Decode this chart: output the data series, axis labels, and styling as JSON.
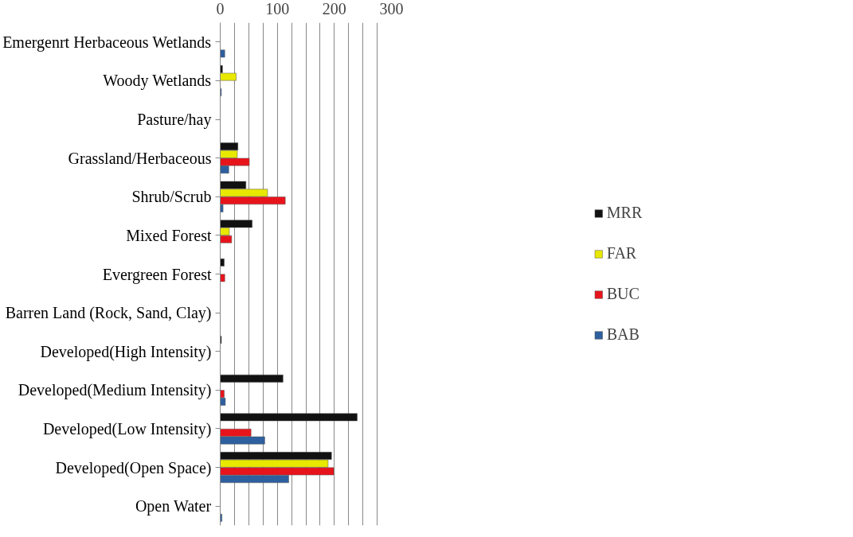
{
  "chart_data": {
    "type": "bar",
    "orientation": "horizontal",
    "categories": [
      "Emergenrt Herbaceous Wetlands",
      "Woody Wetlands",
      "Pasture/hay",
      "Grassland/Herbaceous",
      "Shrub/Scrub",
      "Mixed Forest",
      "Evergreen Forest",
      "Barren Land (Rock, Sand, Clay)",
      "Developed(High Intensity)",
      "Developed(Medium Intensity)",
      "Developed(Low Intensity)",
      "Developed(Open Space)",
      "Open Water"
    ],
    "series": [
      {
        "name": "MRR",
        "color": "#111111",
        "values": [
          null,
          4,
          null,
          31,
          45,
          56,
          7,
          null,
          2,
          110,
          240,
          195,
          null
        ]
      },
      {
        "name": "FAR",
        "color": "#e8e800",
        "values": [
          null,
          28,
          null,
          30,
          83,
          16,
          null,
          null,
          null,
          null,
          null,
          189,
          null
        ]
      },
      {
        "name": "BUC",
        "color": "#e8141c",
        "values": [
          null,
          null,
          null,
          51,
          114,
          20,
          8,
          null,
          null,
          7,
          54,
          199,
          null
        ]
      },
      {
        "name": "BAB",
        "color": "#2e5f9e",
        "values": [
          8,
          2,
          null,
          15,
          5,
          null,
          null,
          null,
          null,
          9,
          78,
          120,
          3
        ]
      }
    ],
    "xlim": [
      0,
      300
    ],
    "xticks": [
      0,
      {
        "value": 25,
        "label": null
      },
      {
        "value": 50,
        "label": null
      },
      {
        "value": 75,
        "label": null
      },
      100,
      {
        "value": 125,
        "label": null
      },
      {
        "value": 150,
        "label": null
      },
      {
        "value": 175,
        "label": null
      },
      200,
      {
        "value": 225,
        "label": null
      },
      {
        "value": 250,
        "label": null
      },
      {
        "value": 275,
        "label": null
      },
      300
    ],
    "grid": "x",
    "legend": "right"
  }
}
